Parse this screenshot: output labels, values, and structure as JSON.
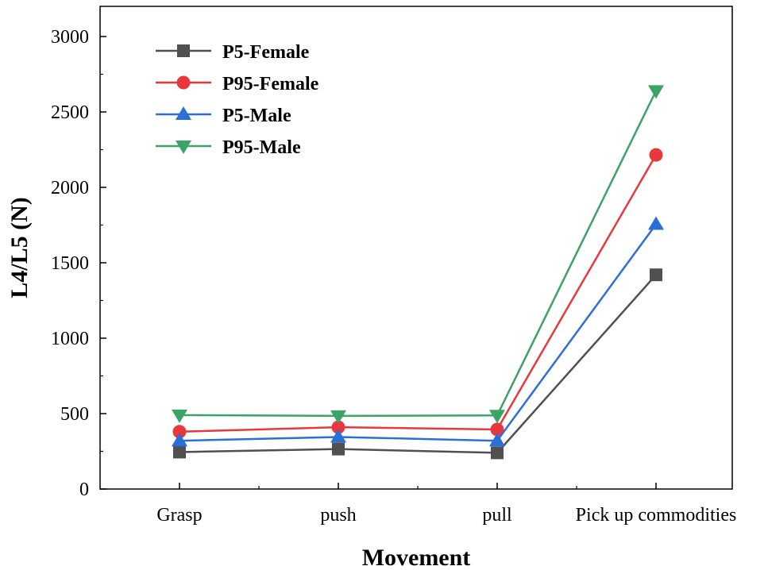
{
  "chart_data": {
    "type": "line",
    "title": "",
    "xlabel": "Movement",
    "ylabel": "L4/L5 (N)",
    "categories": [
      "Grasp",
      "push",
      "pull",
      "Pick up commodities"
    ],
    "ylim": [
      0,
      3200
    ],
    "yticks": [
      0,
      500,
      1000,
      1500,
      2000,
      2500,
      3000
    ],
    "grid": false,
    "legend_position": "top-left",
    "series": [
      {
        "name": "P5-Female",
        "color": "#505050",
        "marker": "square",
        "values": [
          245,
          265,
          240,
          1420
        ]
      },
      {
        "name": "P95-Female",
        "color": "#e8383d",
        "marker": "circle",
        "values": [
          380,
          410,
          395,
          2215
        ]
      },
      {
        "name": "P5-Male",
        "color": "#2a6fd6",
        "marker": "triangle-up",
        "values": [
          320,
          345,
          320,
          1755
        ]
      },
      {
        "name": "P95-Male",
        "color": "#3aa365",
        "marker": "triangle-down",
        "values": [
          490,
          485,
          488,
          2640
        ]
      }
    ]
  }
}
